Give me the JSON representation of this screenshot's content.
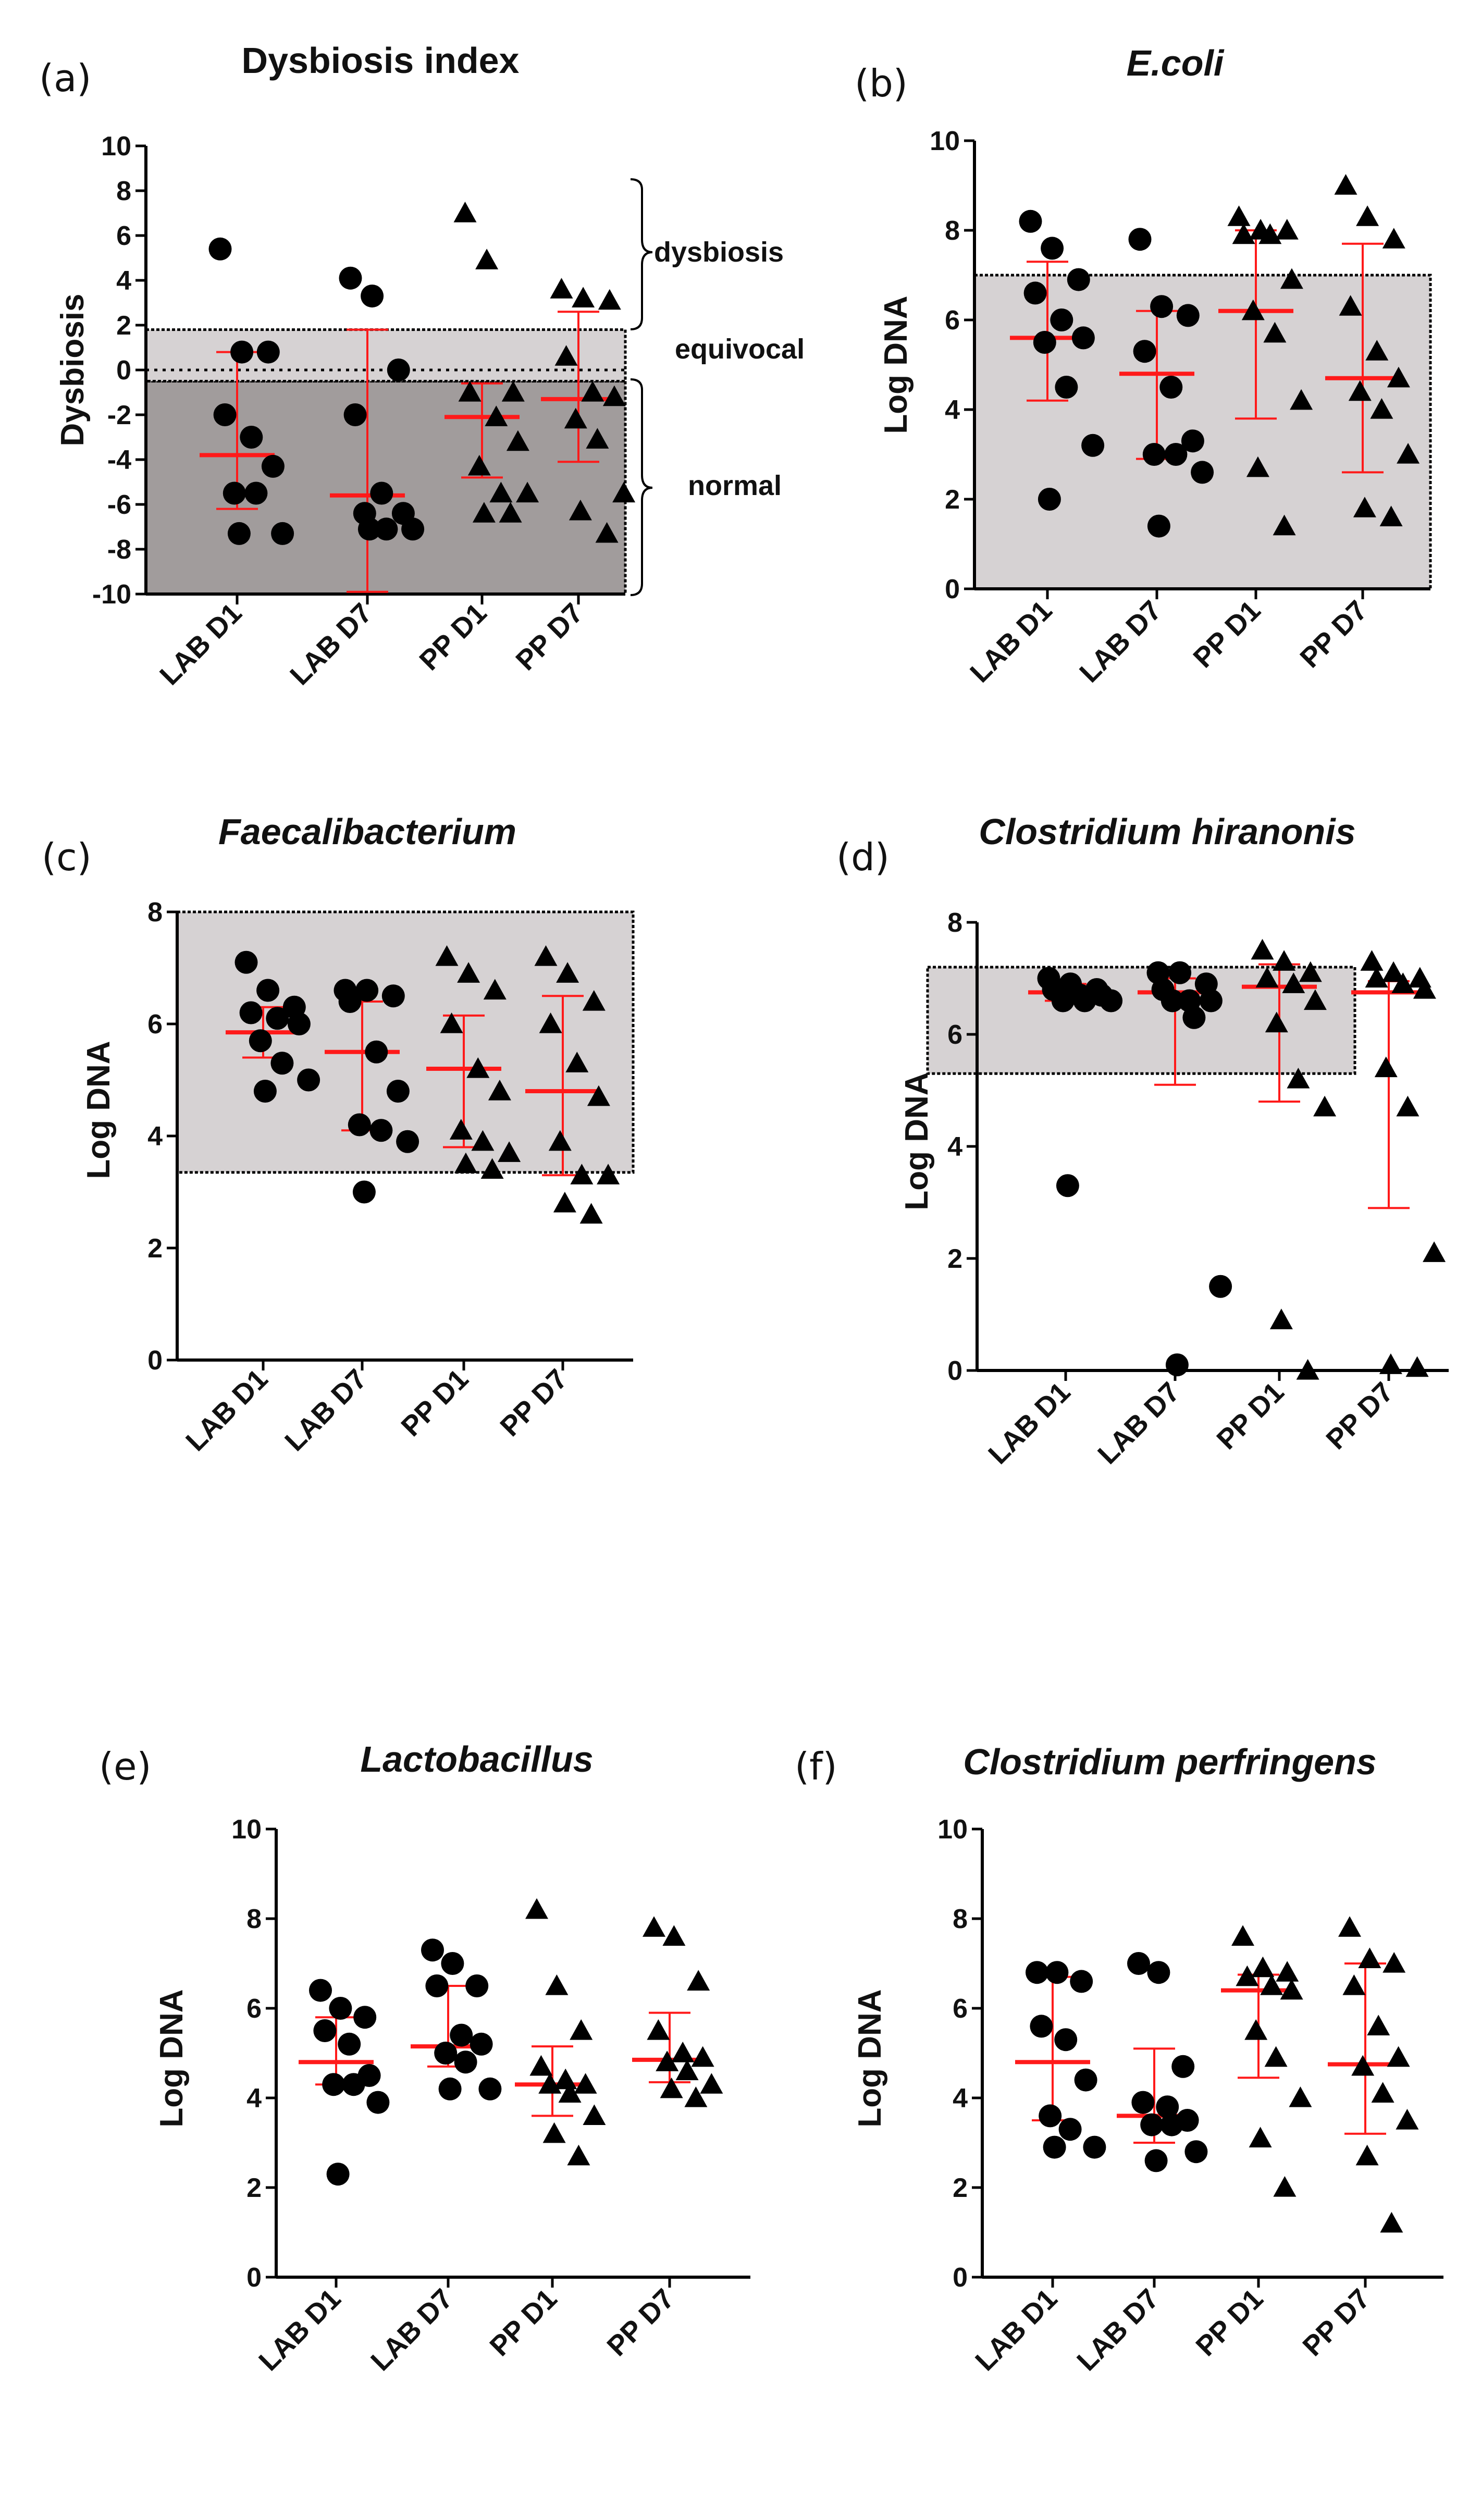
{
  "colors": {
    "marker": "#000000",
    "summary": "#ff1a1a",
    "band_light": "#d6d2d3",
    "band_dark": "#a19c9c",
    "axis": "#000000"
  },
  "chart_data": [
    {
      "panel": "(a)",
      "type": "scatter",
      "title": "Dysbiosis index",
      "title_italic": false,
      "ylabel": "Dysbiosis",
      "ylim": [
        -10,
        10
      ],
      "yticks": [
        -10,
        -8,
        -6,
        -4,
        -2,
        0,
        2,
        4,
        6,
        8,
        10
      ],
      "categories": [
        "LAB D1",
        "LAB D7",
        "PP D1",
        "PP D7"
      ],
      "markers": [
        "circle",
        "circle",
        "triangle",
        "triangle"
      ],
      "points": [
        [
          5.4,
          0.8,
          0.8,
          -2.0,
          -3.0,
          -4.3,
          -5.5,
          -5.5,
          -7.3,
          -7.3
        ],
        [
          4.1,
          3.3,
          0.0,
          -2.0,
          -5.5,
          -6.4,
          -6.4,
          -7.1,
          -7.1,
          -7.1
        ],
        [
          7.0,
          4.9,
          -1.0,
          -1.0,
          -2.1,
          -3.2,
          -4.3,
          -5.5,
          -5.5,
          -6.4,
          -6.4
        ],
        [
          3.6,
          3.2,
          3.1,
          0.6,
          -1.0,
          -1.2,
          -2.2,
          -3.1,
          -5.5,
          -6.3,
          -7.3
        ]
      ],
      "center": [
        -3.8,
        -5.6,
        -2.1,
        -1.3
      ],
      "error_low": [
        -6.2,
        -9.9,
        -4.8,
        -4.1
      ],
      "error_high": [
        0.8,
        1.8,
        -0.6,
        2.6
      ],
      "bands": [
        {
          "from": -10,
          "to": -0.5,
          "shade": "dark"
        },
        {
          "from": -0.5,
          "to": 1.8,
          "shade": "light"
        }
      ],
      "reference_line": 0,
      "zone_labels": [
        "dysbiosis",
        "equivocal",
        "normal"
      ]
    },
    {
      "panel": "(b)",
      "type": "scatter",
      "title": "E.coli",
      "title_italic": true,
      "ylabel": "Log DNA",
      "ylim": [
        0,
        10
      ],
      "yticks": [
        0,
        2,
        4,
        6,
        8,
        10
      ],
      "categories": [
        "LAB D1",
        "LAB D7",
        "PP D1",
        "PP D7"
      ],
      "markers": [
        "circle",
        "circle",
        "triangle",
        "triangle"
      ],
      "points": [
        [
          8.2,
          7.6,
          6.9,
          6.6,
          6.0,
          5.6,
          5.5,
          4.5,
          3.2,
          2.0
        ],
        [
          7.8,
          6.3,
          6.1,
          5.3,
          4.5,
          3.3,
          3.0,
          3.0,
          2.6,
          1.4
        ],
        [
          8.3,
          8.0,
          8.0,
          7.9,
          7.9,
          6.9,
          6.2,
          5.7,
          4.2,
          2.7,
          1.4
        ],
        [
          9.0,
          8.3,
          7.8,
          6.3,
          5.3,
          4.7,
          4.4,
          4.0,
          3.0,
          1.8,
          1.6
        ]
      ],
      "center": [
        5.6,
        4.8,
        6.2,
        4.7
      ],
      "error_low": [
        4.2,
        2.9,
        3.8,
        2.6
      ],
      "error_high": [
        7.3,
        6.2,
        8.0,
        7.7
      ],
      "bands": [
        {
          "from": 0,
          "to": 7.0,
          "shade": "light"
        }
      ]
    },
    {
      "panel": "(c)",
      "type": "scatter",
      "title": "Faecalibacterium",
      "title_italic": true,
      "ylabel": "Log DNA",
      "ylim": [
        0,
        8
      ],
      "yticks": [
        0,
        2,
        4,
        6,
        8
      ],
      "categories": [
        "LAB D1",
        "LAB D7",
        "PP D1",
        "PP D7"
      ],
      "markers": [
        "circle",
        "circle",
        "triangle",
        "triangle"
      ],
      "points": [
        [
          7.1,
          6.6,
          6.3,
          6.2,
          6.1,
          6.0,
          5.7,
          5.3,
          5.0,
          4.8
        ],
        [
          6.6,
          6.6,
          6.5,
          6.4,
          5.5,
          4.8,
          4.2,
          4.1,
          3.9,
          3.0
        ],
        [
          7.2,
          6.9,
          6.6,
          6.0,
          5.2,
          4.8,
          4.1,
          3.9,
          3.7,
          3.5,
          3.4
        ],
        [
          7.2,
          6.9,
          6.4,
          6.0,
          5.3,
          4.7,
          3.9,
          3.3,
          3.3,
          2.8,
          2.6
        ]
      ],
      "center": [
        5.85,
        5.5,
        5.2,
        4.8
      ],
      "error_low": [
        5.4,
        4.1,
        3.8,
        3.3
      ],
      "error_high": [
        6.3,
        6.4,
        6.15,
        6.5
      ],
      "bands": [
        {
          "from": 3.35,
          "to": 8.0,
          "shade": "light"
        }
      ]
    },
    {
      "panel": "(d)",
      "type": "scatter",
      "title": "Clostridium hiranonis",
      "title_italic": true,
      "ylabel": "Log DNA",
      "ylim": [
        0,
        8
      ],
      "yticks": [
        0,
        2,
        4,
        6,
        8
      ],
      "categories": [
        "LAB D1",
        "LAB D7",
        "PP D1",
        "PP D7"
      ],
      "markers": [
        "circle",
        "circle",
        "triangle",
        "triangle"
      ],
      "points": [
        [
          7.0,
          6.9,
          6.8,
          6.8,
          6.7,
          6.7,
          6.6,
          6.6,
          6.6,
          3.3
        ],
        [
          7.1,
          7.1,
          6.9,
          6.8,
          6.6,
          6.6,
          6.6,
          6.3,
          1.5,
          0.1
        ],
        [
          7.5,
          7.3,
          7.1,
          7.0,
          6.9,
          6.6,
          6.2,
          5.2,
          4.7,
          0.9,
          0.0
        ],
        [
          7.3,
          7.1,
          7.0,
          7.0,
          6.9,
          6.8,
          5.4,
          4.7,
          2.1,
          0.1,
          0.05
        ]
      ],
      "center": [
        6.75,
        6.75,
        6.85,
        6.75
      ],
      "error_low": [
        6.6,
        5.1,
        4.8,
        2.9
      ],
      "error_high": [
        6.9,
        7.0,
        7.25,
        6.95
      ],
      "bands": [
        {
          "from": 5.3,
          "to": 7.2,
          "shade": "light"
        }
      ]
    },
    {
      "panel": "(e)",
      "type": "scatter",
      "title": "Lactobacillus",
      "title_italic": true,
      "ylabel": "Log DNA",
      "ylim": [
        0,
        10
      ],
      "yticks": [
        0,
        2,
        4,
        6,
        8,
        10
      ],
      "categories": [
        "LAB D1",
        "LAB D7",
        "PP D1",
        "PP D7"
      ],
      "markers": [
        "circle",
        "circle",
        "triangle",
        "triangle"
      ],
      "points": [
        [
          6.4,
          6.0,
          5.8,
          5.5,
          5.2,
          4.5,
          4.3,
          4.3,
          3.9,
          2.3
        ],
        [
          7.3,
          7.0,
          6.5,
          6.5,
          5.4,
          5.2,
          5.0,
          4.8,
          4.2,
          4.2
        ],
        [
          8.2,
          6.5,
          5.5,
          4.7,
          4.4,
          4.3,
          4.3,
          4.1,
          3.6,
          3.2,
          2.7
        ],
        [
          7.8,
          7.6,
          6.6,
          5.5,
          5.0,
          4.9,
          4.8,
          4.6,
          4.3,
          4.2,
          4.0
        ]
      ],
      "center": [
        4.8,
        5.15,
        4.3,
        4.85
      ],
      "error_low": [
        4.3,
        4.7,
        3.6,
        4.35
      ],
      "error_high": [
        5.8,
        6.5,
        5.15,
        5.9
      ],
      "bands": []
    },
    {
      "panel": "(f)",
      "type": "scatter",
      "title": "Clostridium perfringens",
      "title_italic": true,
      "ylabel": "Log DNA",
      "ylim": [
        0,
        10
      ],
      "yticks": [
        0,
        2,
        4,
        6,
        8,
        10
      ],
      "categories": [
        "LAB D1",
        "LAB D7",
        "PP D1",
        "PP D7"
      ],
      "markers": [
        "circle",
        "circle",
        "triangle",
        "triangle"
      ],
      "points": [
        [
          6.8,
          6.8,
          6.6,
          5.6,
          5.3,
          4.4,
          3.6,
          3.3,
          2.9,
          2.9
        ],
        [
          7.0,
          6.8,
          4.7,
          3.9,
          3.8,
          3.5,
          3.4,
          3.4,
          2.8,
          2.6
        ],
        [
          7.6,
          6.9,
          6.8,
          6.7,
          6.5,
          6.4,
          5.5,
          4.9,
          4.0,
          3.1,
          2.0
        ],
        [
          7.8,
          7.1,
          7.0,
          6.5,
          5.6,
          4.9,
          4.7,
          4.1,
          3.5,
          2.7,
          1.2
        ]
      ],
      "center": [
        4.8,
        3.6,
        6.4,
        4.75
      ],
      "error_low": [
        3.5,
        3.0,
        4.45,
        3.2
      ],
      "error_high": [
        6.7,
        5.1,
        6.75,
        7.0
      ],
      "bands": []
    }
  ]
}
